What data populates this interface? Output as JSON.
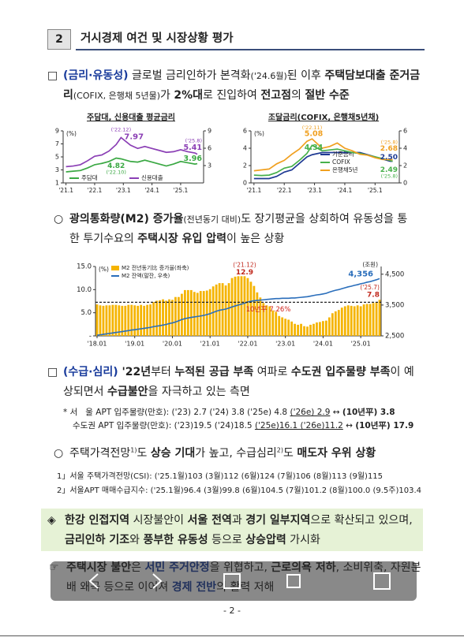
{
  "header": {
    "number": "2",
    "title": "거시경제 여건 및 시장상황 평가"
  },
  "p1": {
    "bullet": "□",
    "segments": [
      {
        "t": "(금리·유동성)",
        "s": "tag"
      },
      {
        "t": " 글로벌 금리인하가 본격화"
      },
      {
        "t": "('24.6월)",
        "s": "small"
      },
      {
        "t": "된 이후 "
      },
      {
        "t": "주택담보대출 준거금리",
        "s": "b"
      },
      {
        "t": "(COFIX, 은행채 5년물)",
        "s": "small"
      },
      {
        "t": "가 "
      },
      {
        "t": "2%대",
        "s": "b"
      },
      {
        "t": "로 진입하여 "
      },
      {
        "t": "전고점",
        "s": "b"
      },
      {
        "t": "의 "
      },
      {
        "t": "절반 수준",
        "s": "b"
      }
    ]
  },
  "p2": {
    "bullet": "○",
    "segments": [
      {
        "t": "광의통화량(M2) 증가율",
        "s": "b"
      },
      {
        "t": "(전년동기 대비)",
        "s": "small"
      },
      {
        "t": "도 장기평균을 상회하여 유동성을 통한 투기수요의 "
      },
      {
        "t": "주택시장 유입 압력",
        "s": "b"
      },
      {
        "t": "이 높은 상황"
      }
    ]
  },
  "p3": {
    "bullet": "□",
    "segments": [
      {
        "t": "(수급·심리)",
        "s": "tag"
      },
      {
        "t": " '22년",
        "s": "b"
      },
      {
        "t": "부터 "
      },
      {
        "t": "누적된 공급 부족",
        "s": "b"
      },
      {
        "t": " 여파로 "
      },
      {
        "t": "수도권 입주물량 부족",
        "s": "b"
      },
      {
        "t": "이 예상되면서 "
      },
      {
        "t": "수급불안",
        "s": "b"
      },
      {
        "t": "을 자극하고 있는 측면"
      }
    ]
  },
  "notes": [
    [
      {
        "t": "* 서   울 APT 입주물량(만호): ('23) 2.7 ('24) 3.8 ('25e) 4.8 "
      },
      {
        "t": "('26e) 2.9",
        "s": "u"
      },
      {
        "t": " ↔ "
      },
      {
        "t": "(10년平) 3.8",
        "s": "b"
      }
    ],
    [
      {
        "t": "수도권 APT 입주물량(만호): ('23)19.5 ('24)18.5 "
      },
      {
        "t": "('25e)16.1 ('26e)11.2",
        "s": "u"
      },
      {
        "t": " ↔ "
      },
      {
        "t": "(10년平) 17.9",
        "s": "b"
      }
    ]
  ],
  "p4": {
    "bullet": "○",
    "segments": [
      {
        "t": "주택가격전망"
      },
      {
        "t": "1)",
        "s": "sup"
      },
      {
        "t": "도 "
      },
      {
        "t": "상승 기대",
        "s": "b"
      },
      {
        "t": "가 높고, 수급심리"
      },
      {
        "t": "2)",
        "s": "sup"
      },
      {
        "t": "도 "
      },
      {
        "t": "매도자 우위 상황",
        "s": "b"
      }
    ]
  },
  "footnotes": [
    "1」서울 주택가격전망(CSI): ('25.1월)103 (3월)112 (6월)124 (7월)106 (8월)113 (9월)115",
    "2」서울APT 매매수급지수: ('25.1월)96.4 (3월)99.8 (6월)104.5 (7월)101.2 (8월)100.0 (9.5주)103.4"
  ],
  "summary": {
    "s1": {
      "bullet": "◈",
      "segments": [
        {
          "t": "한강 인접지역",
          "s": "b"
        },
        {
          "t": " 시장불안이 "
        },
        {
          "t": "서울 전역",
          "s": "b"
        },
        {
          "t": "과 "
        },
        {
          "t": "경기 일부지역",
          "s": "b"
        },
        {
          "t": "으로 확산되고 있으며, "
        },
        {
          "t": "금리인하 기조",
          "s": "b"
        },
        {
          "t": "와 "
        },
        {
          "t": "풍부한 유동성",
          "s": "b"
        },
        {
          "t": " 등으로 "
        },
        {
          "t": "상승압력",
          "s": "b"
        },
        {
          "t": " 가시화"
        }
      ]
    },
    "s2": {
      "bullet": "☞",
      "segments": [
        {
          "t": "주택시장 불안",
          "s": "b"
        },
        {
          "t": "은 "
        },
        {
          "t": "서민 주거안정",
          "s": "bb"
        },
        {
          "t": "을 위협하고, "
        },
        {
          "t": "근로의욕 저하",
          "s": "b"
        },
        {
          "t": ", 소비위축, 자원분배 왜곡 등으로 이어져 "
        },
        {
          "t": "경제 전반",
          "s": "bb"
        },
        {
          "t": "의 활력 저해"
        }
      ]
    }
  },
  "footer": "- 2 -",
  "chart_data": [
    {
      "type": "line",
      "title": "주담대, 신용대출 평균금리",
      "ylabel": "(%)",
      "x": [
        2021,
        2021.25,
        2021.5,
        2021.75,
        2022,
        2022.25,
        2022.5,
        2022.75,
        2022.92,
        2023.25,
        2023.5,
        2023.75,
        2024,
        2024.25,
        2024.5,
        2024.75,
        2025,
        2025.25,
        2025.5,
        2025.58
      ],
      "xlim": [
        2020.9,
        2025.8
      ],
      "xticks": [
        {
          "value": 2021,
          "label": "'21.1"
        },
        {
          "value": 2022,
          "label": "'22.1"
        },
        {
          "value": 2023,
          "label": "'23.1"
        },
        {
          "value": 2024,
          "label": "'24.1"
        },
        {
          "value": 2025,
          "label": "'25.1"
        }
      ],
      "ylim": [
        1,
        9
      ],
      "yticks": [
        1,
        3,
        5,
        7,
        9
      ],
      "y2lim": [
        0,
        9
      ],
      "y2ticks": [
        3,
        6,
        9
      ],
      "series": [
        {
          "name": "주담대",
          "color": "#3aa843",
          "values": [
            2.7,
            2.8,
            2.9,
            3.3,
            3.8,
            4.0,
            4.3,
            4.82,
            4.7,
            4.3,
            4.2,
            4.5,
            4.2,
            3.9,
            3.6,
            3.9,
            4.3,
            4.1,
            3.9,
            3.96
          ]
        },
        {
          "name": "신용대출",
          "color": "#8b3fb5",
          "values": [
            3.5,
            3.6,
            3.8,
            4.4,
            5.1,
            5.3,
            5.9,
            6.9,
            7.97,
            6.8,
            6.3,
            6.6,
            6.3,
            6.0,
            5.7,
            5.8,
            6.1,
            5.8,
            5.6,
            5.41
          ]
        }
      ],
      "annotations": [
        "('22.12)",
        "('22.10)",
        "('25.8)"
      ]
    },
    {
      "type": "line",
      "title": "조달금리(COFIX, 은행채5년채)",
      "x": [
        2021,
        2021.25,
        2021.5,
        2021.75,
        2022,
        2022.25,
        2022.5,
        2022.75,
        2022.92,
        2023.25,
        2023.5,
        2023.75,
        2024,
        2024.25,
        2024.5,
        2024.75,
        2025,
        2025.25,
        2025.5,
        2025.58
      ],
      "xlim": [
        2020.9,
        2025.8
      ],
      "xticks": [
        {
          "value": 2021,
          "label": "'21.1"
        },
        {
          "value": 2022,
          "label": "'22.1"
        },
        {
          "value": 2023,
          "label": "'23.1"
        },
        {
          "value": 2024,
          "label": "'24.1"
        },
        {
          "value": 2025,
          "label": "'25.1"
        }
      ],
      "ylabel": "(%)",
      "ylim": [
        0,
        6
      ],
      "yticks": [
        0,
        2,
        4,
        6
      ],
      "y2lim": [
        0,
        6
      ],
      "y2ticks": [
        0,
        2,
        4,
        6
      ],
      "series": [
        {
          "name": "기준금리",
          "color": "#1f3a93",
          "values": [
            0.5,
            0.5,
            0.5,
            0.75,
            1.25,
            1.5,
            2.25,
            3.0,
            3.25,
            3.5,
            3.5,
            3.5,
            3.5,
            3.5,
            3.5,
            3.25,
            3.0,
            2.75,
            2.5,
            2.5
          ],
          "value_labels": [
            null,
            null,
            null,
            null,
            null,
            null,
            null,
            null,
            null,
            null,
            null,
            null,
            null,
            null,
            null,
            null,
            null,
            null,
            null,
            "2.50"
          ]
        },
        {
          "name": "COFIX",
          "color": "#47b04b",
          "values": [
            0.9,
            0.85,
            0.9,
            1.2,
            1.7,
            1.9,
            2.6,
            3.4,
            4.34,
            3.7,
            3.8,
            3.9,
            3.7,
            3.5,
            3.4,
            3.2,
            3.0,
            2.8,
            2.6,
            2.49
          ]
        },
        {
          "name": "은행채5년",
          "color": "#f0a020",
          "values": [
            1.4,
            1.5,
            1.6,
            2.2,
            2.6,
            3.3,
            3.9,
            4.8,
            5.08,
            4.0,
            4.2,
            4.6,
            4.0,
            3.7,
            3.3,
            3.2,
            2.9,
            2.7,
            2.7,
            2.68
          ]
        }
      ],
      "annotations": [
        "('22.11)",
        "('25.8)",
        "('25.8)"
      ]
    },
    {
      "type": "bar",
      "ylabel": "(%)",
      "y2label": "(조원)",
      "categories": [
        "'18.01",
        null,
        null,
        null,
        null,
        null,
        null,
        null,
        null,
        null,
        null,
        null,
        "'19.01",
        null,
        null,
        null,
        null,
        null,
        null,
        null,
        null,
        null,
        null,
        null,
        "'20.01",
        null,
        null,
        null,
        null,
        null,
        null,
        null,
        null,
        null,
        null,
        null,
        "'21.01",
        null,
        null,
        null,
        null,
        null,
        null,
        null,
        null,
        null,
        null,
        null,
        "'22.01",
        null,
        null,
        null,
        null,
        null,
        null,
        null,
        null,
        null,
        null,
        null,
        "'23.01",
        null,
        null,
        null,
        null,
        null,
        null,
        null,
        null,
        null,
        null,
        null,
        "'24.01",
        null,
        null,
        null,
        null,
        null,
        null,
        null,
        null,
        null,
        null,
        null,
        "'25.01",
        null,
        null,
        null,
        null,
        null,
        null
      ],
      "ylim": [
        0,
        15
      ],
      "yticks": [
        {
          "value": 0,
          "label": "-"
        },
        {
          "value": 5,
          "label": "5.0"
        },
        {
          "value": 10,
          "label": "10.0"
        },
        {
          "value": 15,
          "label": "15.0"
        }
      ],
      "y2lim": [
        2500,
        4750
      ],
      "y2ticks": [
        {
          "value": 2500,
          "label": "2,500"
        },
        {
          "value": 3500,
          "label": "3,500"
        },
        {
          "value": 4500,
          "label": "4,500"
        }
      ],
      "series": [
        {
          "name": "M2 전년동기比 증가율(좌축)",
          "color": "#f5b400",
          "values": [
            6.8,
            6.6,
            6.5,
            6.6,
            6.6,
            6.7,
            6.7,
            6.6,
            6.5,
            6.5,
            6.7,
            6.7,
            6.6,
            6.5,
            6.7,
            6.5,
            6.7,
            6.8,
            7.3,
            7.6,
            7.7,
            7.9,
            7.6,
            7.9,
            7.8,
            8.4,
            8.4,
            9.1,
            9.9,
            9.9,
            9.9,
            9.5,
            9.3,
            9.7,
            9.7,
            9.8,
            10.1,
            10.7,
            11.1,
            11.4,
            11.4,
            10.9,
            11.4,
            12.5,
            12.8,
            12.9,
            12.9,
            12.9,
            12.5,
            11.7,
            10.8,
            9.4,
            8.3,
            7.1,
            6.6,
            6.4,
            5.5,
            5.2,
            4.3,
            4.0,
            3.7,
            3.5,
            3.1,
            2.6,
            2.4,
            2.6,
            2.1,
            2.0,
            2.4,
            2.6,
            2.9,
            3.0,
            3.2,
            3.3,
            4.0,
            4.9,
            5.3,
            5.6,
            6.1,
            6.4,
            6.6,
            6.5,
            6.4,
            6.6,
            6.4,
            6.8,
            6.9,
            6.9,
            7.1,
            7.3,
            7.8
          ]
        },
        {
          "name": "M2 잔액(말잔, 우축)",
          "color": "#2a6ebb",
          "axis": "y2",
          "values": [
            2520,
            2535,
            2550,
            2565,
            2580,
            2595,
            2610,
            2625,
            2640,
            2655,
            2670,
            2690,
            2700,
            2715,
            2730,
            2745,
            2760,
            2775,
            2800,
            2815,
            2830,
            2850,
            2870,
            2900,
            2920,
            2950,
            2990,
            3030,
            3060,
            3080,
            3100,
            3115,
            3130,
            3145,
            3165,
            3190,
            3220,
            3260,
            3300,
            3330,
            3350,
            3370,
            3400,
            3440,
            3470,
            3500,
            3530,
            3560,
            3600,
            3620,
            3640,
            3650,
            3660,
            3670,
            3680,
            3690,
            3700,
            3710,
            3710,
            3720,
            3720,
            3720,
            3730,
            3730,
            3740,
            3750,
            3760,
            3770,
            3790,
            3810,
            3830,
            3840,
            3860,
            3880,
            3920,
            3950,
            3980,
            4000,
            4030,
            4060,
            4090,
            4110,
            4140,
            4160,
            4190,
            4210,
            4240,
            4260,
            4290,
            4320,
            4356
          ],
          "value_labels": [
            null,
            null,
            null,
            null,
            null,
            null,
            null,
            null,
            null,
            null,
            null,
            null,
            null,
            null,
            null,
            null,
            null,
            null,
            null,
            null,
            null,
            null,
            null,
            null,
            null,
            null,
            null,
            null,
            null,
            null,
            null,
            null,
            null,
            null,
            null,
            null,
            null,
            null,
            null,
            null,
            null,
            null,
            null,
            null,
            null,
            null,
            null,
            null,
            null,
            null,
            null,
            null,
            null,
            null,
            null,
            null,
            null,
            null,
            null,
            null,
            null,
            null,
            null,
            null,
            null,
            null,
            null,
            null,
            null,
            null,
            null,
            null,
            null,
            null,
            null,
            null,
            null,
            null,
            null,
            null,
            null,
            null,
            null,
            null,
            null,
            null,
            null,
            null,
            null,
            null,
            "4,356"
          ]
        }
      ],
      "reference": {
        "value": 7.26,
        "label": "10년平 7.26%"
      },
      "annotations": [
        "('21.12)",
        "('25.7)"
      ]
    }
  ]
}
